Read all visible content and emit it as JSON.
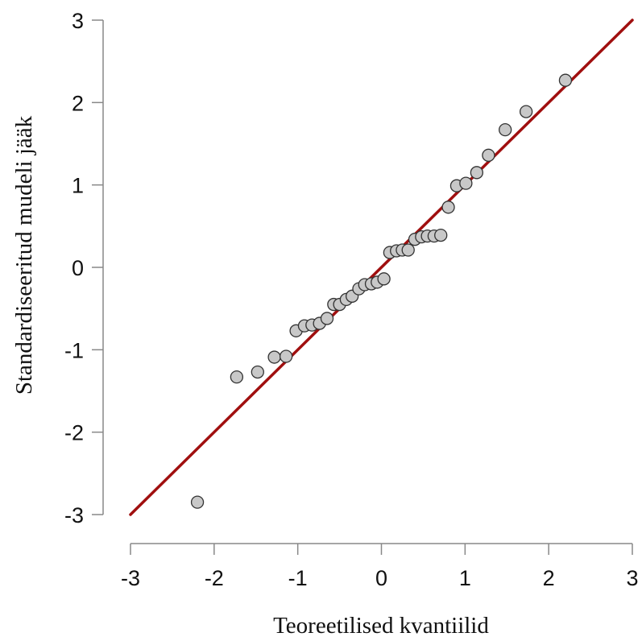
{
  "chart_data": {
    "type": "scatter",
    "xlabel": "Teoreetilised kvantiilid",
    "ylabel": "Standardiseeritud mudeli jääk",
    "xlim": [
      -3,
      3
    ],
    "ylim": [
      -3,
      3
    ],
    "x_ticks": [
      -3,
      -2,
      -1,
      0,
      1,
      2,
      3
    ],
    "y_ticks": [
      -3,
      -2,
      -1,
      0,
      1,
      2,
      3
    ],
    "x_tick_labels": [
      "-3",
      "-2",
      "-1",
      "0",
      "1",
      "2",
      "3"
    ],
    "y_tick_labels": [
      "-3",
      "-2",
      "-1",
      "0",
      "1",
      "2",
      "3"
    ],
    "grid": false,
    "reference_line": {
      "slope": 1,
      "intercept": 0,
      "color": "#a00f0f"
    },
    "point_color": "#c8c8c8",
    "point_edge_color": "#333333",
    "points": [
      {
        "x": -2.2,
        "y": -2.85
      },
      {
        "x": -1.73,
        "y": -1.33
      },
      {
        "x": -1.48,
        "y": -1.27
      },
      {
        "x": -1.28,
        "y": -1.09
      },
      {
        "x": -1.14,
        "y": -1.08
      },
      {
        "x": -1.02,
        "y": -0.77
      },
      {
        "x": -0.92,
        "y": -0.71
      },
      {
        "x": -0.83,
        "y": -0.7
      },
      {
        "x": -0.74,
        "y": -0.68
      },
      {
        "x": -0.65,
        "y": -0.62
      },
      {
        "x": -0.57,
        "y": -0.45
      },
      {
        "x": -0.5,
        "y": -0.45
      },
      {
        "x": -0.42,
        "y": -0.39
      },
      {
        "x": -0.35,
        "y": -0.35
      },
      {
        "x": -0.27,
        "y": -0.26
      },
      {
        "x": -0.2,
        "y": -0.21
      },
      {
        "x": -0.12,
        "y": -0.2
      },
      {
        "x": -0.05,
        "y": -0.18
      },
      {
        "x": 0.03,
        "y": -0.14
      },
      {
        "x": 0.1,
        "y": 0.18
      },
      {
        "x": 0.18,
        "y": 0.2
      },
      {
        "x": 0.25,
        "y": 0.21
      },
      {
        "x": 0.32,
        "y": 0.21
      },
      {
        "x": 0.4,
        "y": 0.34
      },
      {
        "x": 0.48,
        "y": 0.37
      },
      {
        "x": 0.55,
        "y": 0.38
      },
      {
        "x": 0.63,
        "y": 0.38
      },
      {
        "x": 0.71,
        "y": 0.39
      },
      {
        "x": 0.8,
        "y": 0.73
      },
      {
        "x": 0.9,
        "y": 0.99
      },
      {
        "x": 1.01,
        "y": 1.02
      },
      {
        "x": 1.14,
        "y": 1.15
      },
      {
        "x": 1.28,
        "y": 1.36
      },
      {
        "x": 1.48,
        "y": 1.67
      },
      {
        "x": 1.73,
        "y": 1.89
      },
      {
        "x": 2.2,
        "y": 2.27
      }
    ]
  }
}
